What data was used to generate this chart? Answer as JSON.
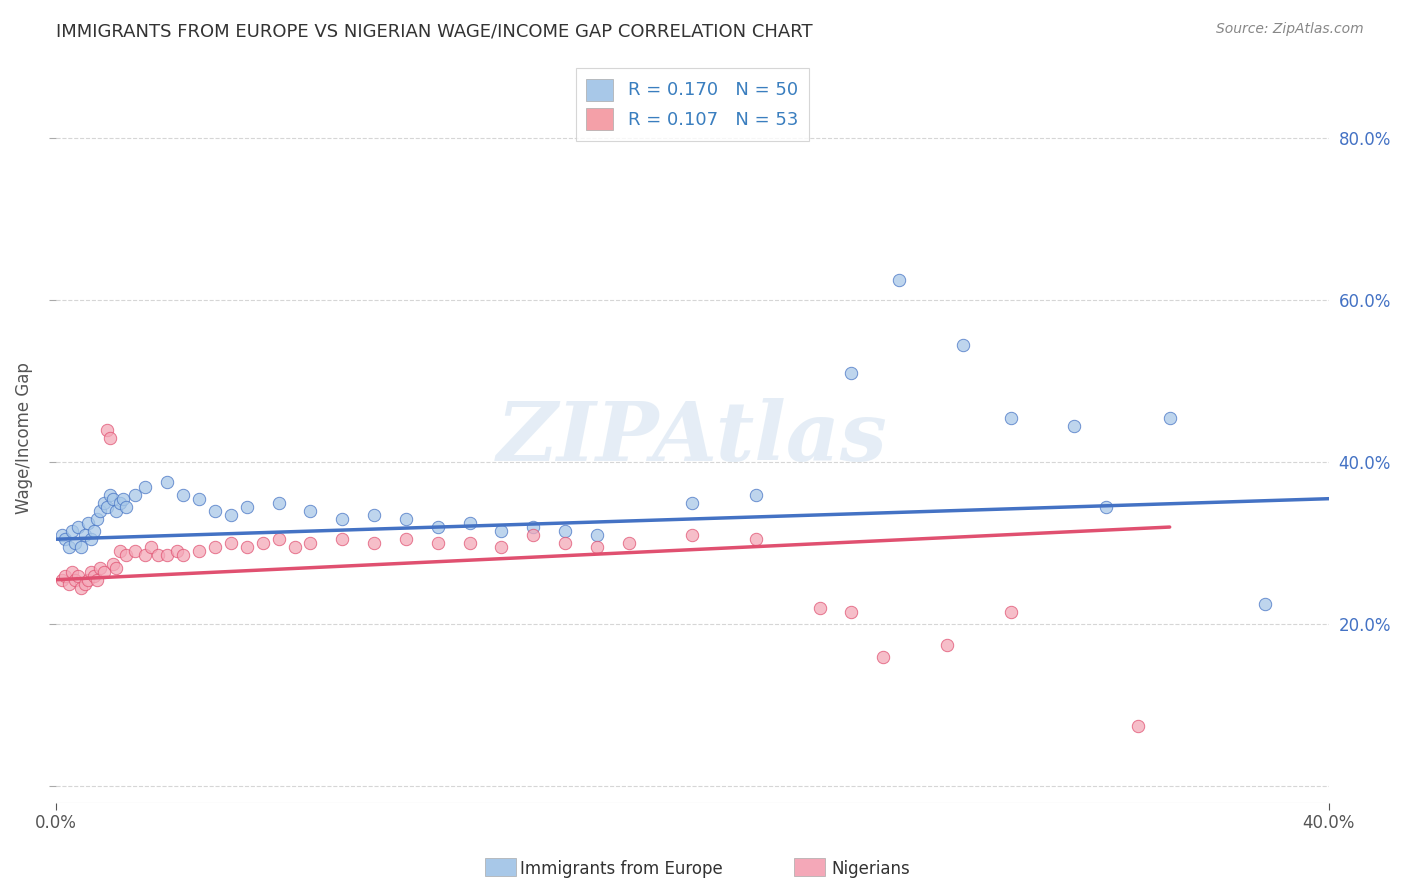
{
  "title": "IMMIGRANTS FROM EUROPE VS NIGERIAN WAGE/INCOME GAP CORRELATION CHART",
  "source": "Source: ZipAtlas.com",
  "ylabel": "Wage/Income Gap",
  "xlim": [
    0.0,
    0.4
  ],
  "ylim": [
    -0.02,
    0.88
  ],
  "xticks": [
    0.0,
    0.4
  ],
  "xticklabels": [
    "0.0%",
    "40.0%"
  ],
  "ytick_positions": [
    0.0,
    0.2,
    0.4,
    0.6,
    0.8
  ],
  "ytick_labels": [
    "",
    "20.0%",
    "40.0%",
    "60.0%",
    "80.0%"
  ],
  "legend_entries": [
    {
      "label": "R = 0.170   N = 50",
      "color": "#a8c8e8"
    },
    {
      "label": "R = 0.107   N = 53",
      "color": "#f4a0a8"
    }
  ],
  "europe_scatter": [
    [
      0.002,
      0.31
    ],
    [
      0.003,
      0.305
    ],
    [
      0.004,
      0.295
    ],
    [
      0.005,
      0.315
    ],
    [
      0.006,
      0.3
    ],
    [
      0.007,
      0.32
    ],
    [
      0.008,
      0.295
    ],
    [
      0.009,
      0.31
    ],
    [
      0.01,
      0.325
    ],
    [
      0.011,
      0.305
    ],
    [
      0.012,
      0.315
    ],
    [
      0.013,
      0.33
    ],
    [
      0.014,
      0.34
    ],
    [
      0.015,
      0.35
    ],
    [
      0.016,
      0.345
    ],
    [
      0.017,
      0.36
    ],
    [
      0.018,
      0.355
    ],
    [
      0.019,
      0.34
    ],
    [
      0.02,
      0.35
    ],
    [
      0.021,
      0.355
    ],
    [
      0.022,
      0.345
    ],
    [
      0.025,
      0.36
    ],
    [
      0.028,
      0.37
    ],
    [
      0.035,
      0.375
    ],
    [
      0.04,
      0.36
    ],
    [
      0.045,
      0.355
    ],
    [
      0.05,
      0.34
    ],
    [
      0.055,
      0.335
    ],
    [
      0.06,
      0.345
    ],
    [
      0.07,
      0.35
    ],
    [
      0.08,
      0.34
    ],
    [
      0.09,
      0.33
    ],
    [
      0.1,
      0.335
    ],
    [
      0.11,
      0.33
    ],
    [
      0.12,
      0.32
    ],
    [
      0.13,
      0.325
    ],
    [
      0.14,
      0.315
    ],
    [
      0.15,
      0.32
    ],
    [
      0.16,
      0.315
    ],
    [
      0.17,
      0.31
    ],
    [
      0.2,
      0.35
    ],
    [
      0.22,
      0.36
    ],
    [
      0.25,
      0.51
    ],
    [
      0.265,
      0.625
    ],
    [
      0.285,
      0.545
    ],
    [
      0.3,
      0.455
    ],
    [
      0.32,
      0.445
    ],
    [
      0.33,
      0.345
    ],
    [
      0.35,
      0.455
    ],
    [
      0.38,
      0.225
    ]
  ],
  "nigeria_scatter": [
    [
      0.002,
      0.255
    ],
    [
      0.003,
      0.26
    ],
    [
      0.004,
      0.25
    ],
    [
      0.005,
      0.265
    ],
    [
      0.006,
      0.255
    ],
    [
      0.007,
      0.26
    ],
    [
      0.008,
      0.245
    ],
    [
      0.009,
      0.25
    ],
    [
      0.01,
      0.255
    ],
    [
      0.011,
      0.265
    ],
    [
      0.012,
      0.26
    ],
    [
      0.013,
      0.255
    ],
    [
      0.014,
      0.27
    ],
    [
      0.015,
      0.265
    ],
    [
      0.016,
      0.44
    ],
    [
      0.017,
      0.43
    ],
    [
      0.018,
      0.275
    ],
    [
      0.019,
      0.27
    ],
    [
      0.02,
      0.29
    ],
    [
      0.022,
      0.285
    ],
    [
      0.025,
      0.29
    ],
    [
      0.028,
      0.285
    ],
    [
      0.03,
      0.295
    ],
    [
      0.032,
      0.285
    ],
    [
      0.035,
      0.285
    ],
    [
      0.038,
      0.29
    ],
    [
      0.04,
      0.285
    ],
    [
      0.045,
      0.29
    ],
    [
      0.05,
      0.295
    ],
    [
      0.055,
      0.3
    ],
    [
      0.06,
      0.295
    ],
    [
      0.065,
      0.3
    ],
    [
      0.07,
      0.305
    ],
    [
      0.075,
      0.295
    ],
    [
      0.08,
      0.3
    ],
    [
      0.09,
      0.305
    ],
    [
      0.1,
      0.3
    ],
    [
      0.11,
      0.305
    ],
    [
      0.12,
      0.3
    ],
    [
      0.13,
      0.3
    ],
    [
      0.14,
      0.295
    ],
    [
      0.15,
      0.31
    ],
    [
      0.16,
      0.3
    ],
    [
      0.17,
      0.295
    ],
    [
      0.18,
      0.3
    ],
    [
      0.2,
      0.31
    ],
    [
      0.22,
      0.305
    ],
    [
      0.24,
      0.22
    ],
    [
      0.25,
      0.215
    ],
    [
      0.26,
      0.16
    ],
    [
      0.28,
      0.175
    ],
    [
      0.3,
      0.215
    ],
    [
      0.34,
      0.075
    ]
  ],
  "europe_line": [
    [
      0.0,
      0.305
    ],
    [
      0.4,
      0.355
    ]
  ],
  "nigeria_line": [
    [
      0.0,
      0.255
    ],
    [
      0.35,
      0.32
    ]
  ],
  "europe_line_color": "#4472c4",
  "nigeria_line_color": "#e05070",
  "europe_scatter_color": "#a8c8e8",
  "nigeria_scatter_color": "#f4a8b8",
  "watermark": "ZIPAtlas",
  "background_color": "#ffffff",
  "grid_color": "#cccccc"
}
